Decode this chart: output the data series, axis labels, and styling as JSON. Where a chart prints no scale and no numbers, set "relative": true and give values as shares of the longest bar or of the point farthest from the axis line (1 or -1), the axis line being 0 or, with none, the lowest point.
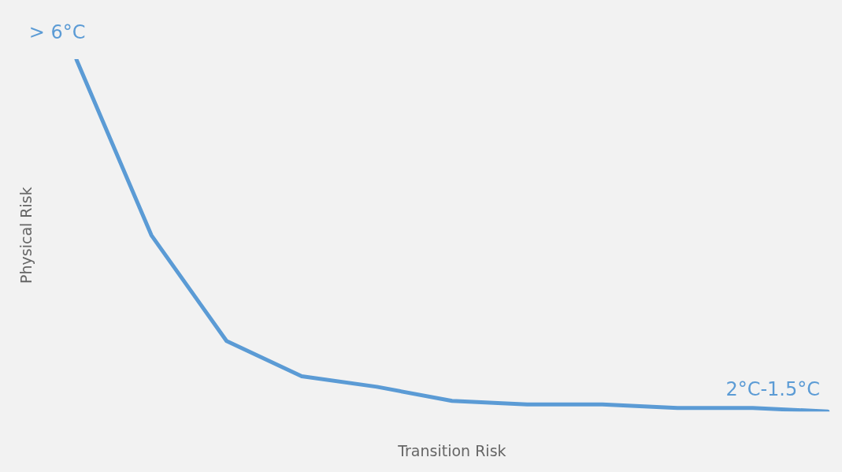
{
  "chart_data": {
    "type": "line",
    "relative": true,
    "xlabel": "Transition Risk",
    "ylabel": "Physical Risk",
    "categories": [
      null,
      null,
      null,
      null,
      null,
      null,
      null,
      null,
      null,
      null,
      null
    ],
    "series": [
      {
        "color": "#5b9bd5",
        "values": [
          1,
          0.5,
          0.2,
          0.1,
          0.07,
          0.03,
          0.02,
          0.02,
          0.01,
          0.01,
          0
        ]
      }
    ],
    "annotations": [
      "> 6°C",
      "2°C-1.5°C"
    ],
    "grid": false,
    "legend": false,
    "marker": "none",
    "line_style": "solid"
  }
}
